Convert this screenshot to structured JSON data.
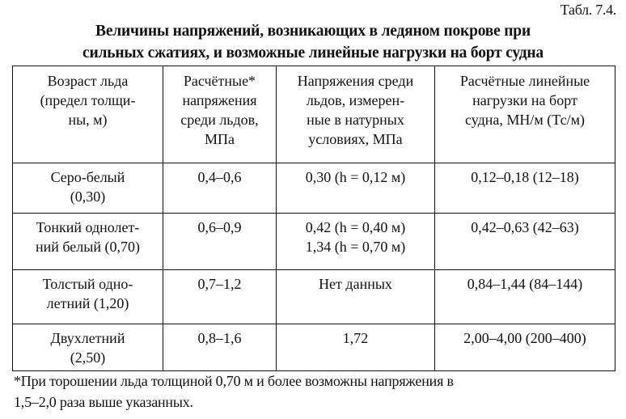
{
  "table_label": "Табл. 7.4.",
  "title": {
    "line1": "Величины напряжений, возникающих в ледяном покрове при",
    "line2": "сильных сжатиях, и возможные линейные нагрузки на борт судна"
  },
  "table": {
    "headers": [
      "Возраст льда\n(предел толщи-\nны, м)",
      "Расчётные*\nнапряжения\nсреди льдов,\nМПа",
      "Напряжения среди\nльдов, измерен-\nные в натурных\nусловиях, МПа",
      "Расчётные линейные\nнагрузки на борт\nсудна, МН/м (Тс/м)"
    ],
    "rows": [
      {
        "ice_age": "Серо-белый\n(0,30)",
        "calc_stress": "0,4–0,6",
        "measured_stress": "0,30 (h = 0,12 м)",
        "line_load": "0,12–0,18 (12–18)"
      },
      {
        "ice_age": "Тонкий однолет-\nний белый (0,70)",
        "calc_stress": "0,6–0,9",
        "measured_stress": "0,42 (h = 0,40 м)\n1,34 (h = 0,70 м)",
        "line_load": "0,42–0,63 (42–63)"
      },
      {
        "ice_age": "Толстый одно-\nлетний (1,20)",
        "calc_stress": "0,7–1,2",
        "measured_stress": "Нет данных",
        "line_load": "0,84–1,44 (84–144)"
      },
      {
        "ice_age": "Двухлетний\n(2,50)",
        "calc_stress": "0,8–1,6",
        "measured_stress": "1,72",
        "line_load": "2,00–4,00 (200–400)"
      }
    ]
  },
  "footnote": {
    "line1": "*При торошении льда толщиной 0,70 м и более возможны напряжения в",
    "line2": "1,5–2,0 раза выше указанных."
  }
}
